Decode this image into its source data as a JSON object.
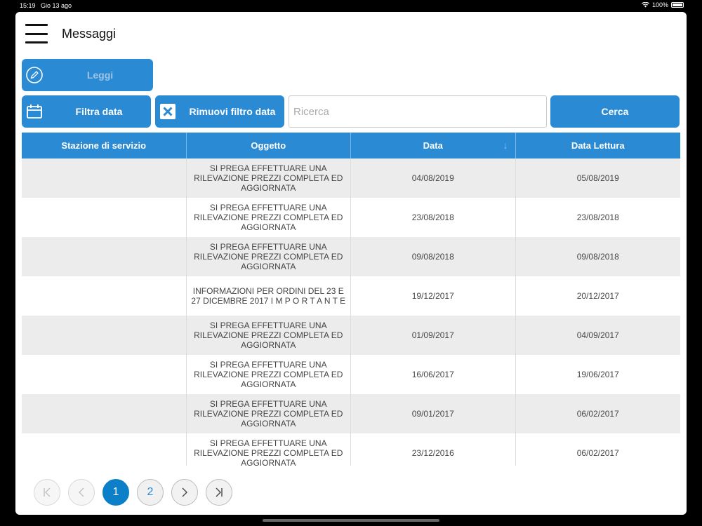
{
  "status_bar": {
    "time": "15:19",
    "date": "Gio 13 ago",
    "battery": "100%"
  },
  "header": {
    "title": "Messaggi",
    "menu_icon": "hamburger-menu-icon"
  },
  "toolbar": {
    "read_label": "Leggi",
    "filter_date_label": "Filtra data",
    "remove_filter_label": "Rimuovi filtro data",
    "search_placeholder": "Ricerca",
    "search_value": "",
    "search_button_label": "Cerca",
    "accent_color": "#2a8ad3"
  },
  "table": {
    "columns": [
      "Stazione di servizio",
      "Oggetto",
      "Data",
      "Data Lettura"
    ],
    "sorted_column": "Data",
    "sort_direction": "descending",
    "rows": [
      {
        "station": "",
        "subject": "SI PREGA EFFETTUARE UNA RILEVAZIONE PREZZI COMPLETA ED AGGIORNATA",
        "date": "04/08/2019",
        "read_date": "05/08/2019"
      },
      {
        "station": "",
        "subject": "SI PREGA EFFETTUARE UNA RILEVAZIONE PREZZI COMPLETA ED AGGIORNATA",
        "date": "23/08/2018",
        "read_date": "23/08/2018"
      },
      {
        "station": "",
        "subject": "SI PREGA EFFETTUARE UNA RILEVAZIONE PREZZI COMPLETA ED AGGIORNATA",
        "date": "09/08/2018",
        "read_date": "09/08/2018"
      },
      {
        "station": "",
        "subject": "INFORMAZIONI PER ORDINI DEL 23 E 27 DICEMBRE 2017 I M P O R T A N T E",
        "date": "19/12/2017",
        "read_date": "20/12/2017"
      },
      {
        "station": "",
        "subject": "SI PREGA EFFETTUARE UNA RILEVAZIONE PREZZI COMPLETA ED AGGIORNATA",
        "date": "01/09/2017",
        "read_date": "04/09/2017"
      },
      {
        "station": "",
        "subject": "SI PREGA EFFETTUARE UNA RILEVAZIONE PREZZI COMPLETA ED AGGIORNATA",
        "date": "16/06/2017",
        "read_date": "19/06/2017"
      },
      {
        "station": "",
        "subject": "SI PREGA EFFETTUARE UNA RILEVAZIONE PREZZI COMPLETA ED AGGIORNATA",
        "date": "09/01/2017",
        "read_date": "06/02/2017"
      },
      {
        "station": "",
        "subject": "SI PREGA EFFETTUARE UNA RILEVAZIONE PREZZI COMPLETA ED AGGIORNATA",
        "date": "23/12/2016",
        "read_date": "06/02/2017"
      }
    ]
  },
  "pagination": {
    "pages": [
      "1",
      "2"
    ],
    "current_page": "1",
    "first_symbol": "K",
    "prev_symbol": "‹",
    "next_symbol": "›",
    "last_symbol": "K"
  }
}
